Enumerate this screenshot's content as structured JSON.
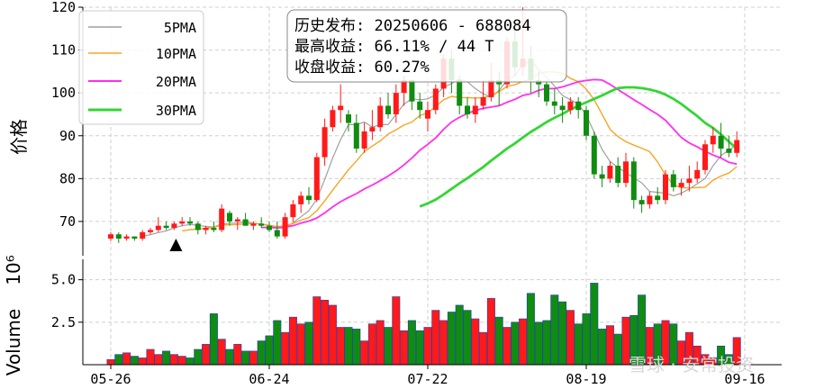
{
  "chart_data": [
    {
      "type": "candlestick",
      "ylabel": "价格",
      "ylim": [
        62,
        120
      ],
      "yticks": [
        70,
        80,
        90,
        100,
        110,
        120
      ],
      "xticks": [
        {
          "i": 0,
          "label": "05-26"
        },
        {
          "i": 20,
          "label": "06-24"
        },
        {
          "i": 40,
          "label": "07-22"
        },
        {
          "i": 60,
          "label": "08-19"
        },
        {
          "i": 80,
          "label": "09-16"
        }
      ],
      "marker_index": 8,
      "legend": [
        "5PMA",
        "10PMA",
        "20PMA",
        "30PMA"
      ],
      "info_lines": [
        "历史发布: 20250606 - 688084",
        "最高收益: 66.11% / 44 T",
        "收盘收益: 60.27%"
      ],
      "candles": [
        [
          66,
          67.5,
          65.5,
          67
        ],
        [
          67,
          67.5,
          65,
          66
        ],
        [
          66,
          67,
          65.5,
          66.5
        ],
        [
          66.5,
          66.5,
          65.5,
          66
        ],
        [
          66,
          68,
          65.5,
          67.5
        ],
        [
          67.5,
          68.5,
          67,
          68
        ],
        [
          68,
          71,
          67.5,
          69
        ],
        [
          69,
          70,
          68,
          68.5
        ],
        [
          68.5,
          70,
          68,
          69.5
        ],
        [
          69.5,
          71,
          69,
          70
        ],
        [
          70,
          71,
          69,
          69.5
        ],
        [
          69.5,
          70,
          67,
          68
        ],
        [
          68,
          69,
          67,
          68.5
        ],
        [
          68.5,
          70,
          67.5,
          68
        ],
        [
          68,
          74,
          67.5,
          73
        ],
        [
          72,
          72.5,
          69,
          70
        ],
        [
          70,
          71,
          68,
          70.5
        ],
        [
          70.5,
          72,
          69,
          69
        ],
        [
          69,
          70,
          68,
          69.5
        ],
        [
          69.5,
          71,
          68.5,
          69
        ],
        [
          69,
          70,
          67.5,
          68
        ],
        [
          68,
          70,
          66,
          66.5
        ],
        [
          66.5,
          72,
          66,
          71
        ],
        [
          71,
          75,
          70,
          74
        ],
        [
          74,
          77,
          72,
          76
        ],
        [
          76,
          78,
          74,
          75
        ],
        [
          75,
          86,
          74.5,
          85
        ],
        [
          85,
          94,
          83,
          92
        ],
        [
          92,
          97,
          91,
          96
        ],
        [
          96,
          102,
          93,
          97
        ],
        [
          95,
          96,
          91,
          93
        ],
        [
          93,
          95,
          86,
          87
        ],
        [
          87,
          93,
          86,
          91
        ],
        [
          91,
          96,
          89,
          92
        ],
        [
          92,
          99,
          91,
          97
        ],
        [
          97,
          100,
          94,
          95
        ],
        [
          95,
          102,
          93,
          100
        ],
        [
          100,
          104,
          97,
          103
        ],
        [
          103,
          103,
          96,
          98
        ],
        [
          98,
          100,
          94,
          96
        ],
        [
          94,
          98,
          91,
          96
        ],
        [
          96,
          102,
          95,
          101
        ],
        [
          101,
          109,
          99,
          108
        ],
        [
          108,
          110,
          100,
          103
        ],
        [
          103,
          104,
          95,
          97
        ],
        [
          97,
          99,
          94,
          95
        ],
        [
          95,
          99,
          93,
          97
        ],
        [
          97,
          103,
          96,
          99
        ],
        [
          99,
          107,
          98,
          103
        ],
        [
          103,
          105,
          97,
          102
        ],
        [
          102,
          113,
          101,
          112
        ],
        [
          112,
          117,
          104,
          106
        ],
        [
          106,
          120,
          104,
          108
        ],
        [
          108,
          111,
          100,
          103
        ],
        [
          103,
          105,
          99,
          102
        ],
        [
          102,
          103,
          97,
          98
        ],
        [
          98,
          101,
          95,
          97
        ],
        [
          97,
          99,
          93,
          96
        ],
        [
          96,
          99,
          95,
          98
        ],
        [
          98,
          99,
          94,
          96
        ],
        [
          96,
          97,
          89,
          90
        ],
        [
          90,
          91,
          80,
          81
        ],
        [
          81,
          83,
          78,
          80
        ],
        [
          80,
          84,
          79,
          83
        ],
        [
          83,
          85,
          78,
          79
        ],
        [
          79,
          86,
          78,
          84
        ],
        [
          84,
          85,
          73,
          75
        ],
        [
          75,
          76,
          72,
          74
        ],
        [
          74,
          77,
          73,
          76
        ],
        [
          76,
          78,
          74,
          75
        ],
        [
          75,
          82,
          74,
          81
        ],
        [
          81,
          82,
          77,
          78
        ],
        [
          78,
          80,
          76,
          79
        ],
        [
          79,
          83,
          77,
          80
        ],
        [
          80,
          84,
          79,
          82
        ],
        [
          82,
          89,
          81,
          88
        ],
        [
          88,
          92,
          86,
          90
        ],
        [
          90,
          93,
          85,
          87
        ],
        [
          87,
          90,
          85,
          86
        ],
        [
          86,
          91,
          85,
          89
        ]
      ],
      "ma5": [
        null,
        null,
        null,
        null,
        66.6,
        66.9,
        67.4,
        67.8,
        68.5,
        69.0,
        69.3,
        69.1,
        68.8,
        68.7,
        69.4,
        69.6,
        69.6,
        69.9,
        69.6,
        69.4,
        69.0,
        68.5,
        68.5,
        69.7,
        71.1,
        72.5,
        75.2,
        79.8,
        84.8,
        89.1,
        92.6,
        92.6,
        93.2,
        92.0,
        92.6,
        92.6,
        95.0,
        97.4,
        98.6,
        98.4,
        98.6,
        99.6,
        101.3,
        102.2,
        103.2,
        102.6,
        101.0,
        99.8,
        99.0,
        100.6,
        103.0,
        104.0,
        106.6,
        107.6,
        105.4,
        103.6,
        101.6,
        99.4,
        98.4,
        97.4,
        94.8,
        90.8,
        86.8,
        84.0,
        82.6,
        81.4,
        80.2,
        79.0,
        77.0,
        76.8,
        76.6,
        76.0,
        76.6,
        77.6,
        78.8,
        80.0,
        83.0,
        85.4,
        86.6,
        88.0
      ],
      "ma10": [
        null,
        null,
        null,
        null,
        null,
        null,
        null,
        null,
        null,
        67.8,
        68.1,
        68.2,
        68.4,
        68.6,
        69.2,
        69.2,
        69.3,
        69.4,
        69.5,
        69.4,
        69.1,
        68.8,
        69.0,
        69.5,
        70.3,
        70.9,
        72.5,
        74.8,
        77.3,
        79.7,
        82.1,
        84.1,
        86.3,
        87.6,
        88.8,
        90.4,
        91.4,
        92.5,
        93.2,
        94.7,
        95.4,
        96.8,
        98.4,
        99.2,
        98.9,
        98.9,
        98.8,
        98.9,
        99.3,
        100.3,
        101.5,
        101.9,
        102.7,
        103.1,
        104.6,
        104.9,
        104.9,
        104.6,
        103.4,
        102.6,
        100.9,
        98.4,
        95.0,
        91.5,
        89.8,
        88.6,
        87.8,
        87.1,
        86.3,
        83.9,
        80.8,
        78.5,
        77.9,
        77.8,
        77.9,
        78.0,
        79.6,
        80.6,
        81.3,
        82.8
      ],
      "ma20": [
        null,
        null,
        null,
        null,
        null,
        null,
        null,
        null,
        null,
        null,
        null,
        null,
        null,
        null,
        null,
        null,
        null,
        null,
        null,
        68.6,
        68.6,
        68.5,
        68.7,
        69.0,
        69.6,
        70.1,
        70.8,
        72.0,
        73.4,
        74.6,
        75.6,
        76.5,
        77.6,
        78.5,
        79.5,
        80.6,
        81.8,
        83.2,
        84.8,
        86.6,
        88.0,
        89.5,
        91.5,
        93.2,
        94.3,
        95.2,
        95.9,
        96.4,
        96.7,
        97.0,
        97.8,
        98.5,
        99.4,
        99.8,
        100.6,
        101.0,
        101.0,
        101.4,
        102.0,
        102.6,
        102.9,
        103.1,
        103.0,
        102.0,
        100.8,
        99.6,
        98.4,
        97.3,
        96.1,
        95.0,
        93.6,
        91.6,
        89.6,
        88.3,
        87.4,
        86.4,
        85.5,
        84.8,
        83.8,
        83.4
      ],
      "ma30": [
        null,
        null,
        null,
        null,
        null,
        null,
        null,
        null,
        null,
        null,
        null,
        null,
        null,
        null,
        null,
        null,
        null,
        null,
        null,
        null,
        null,
        null,
        null,
        null,
        null,
        null,
        null,
        null,
        null,
        null,
        null,
        null,
        null,
        null,
        null,
        null,
        null,
        null,
        null,
        73.5,
        74.2,
        75.1,
        76.3,
        77.6,
        78.9,
        80.1,
        81.4,
        82.7,
        84.2,
        85.6,
        87.0,
        88.2,
        89.6,
        90.9,
        92.0,
        93.2,
        94.2,
        95.1,
        96.1,
        97.0,
        97.8,
        98.6,
        99.4,
        100.3,
        101.1,
        101.3,
        101.3,
        101.1,
        100.8,
        100.3,
        99.6,
        98.6,
        97.4,
        96.0,
        94.6,
        93.0,
        91.8,
        90.3,
        88.6,
        87.0
      ]
    },
    {
      "type": "bar",
      "ylabel": "Volume",
      "scale_label": "10⁶",
      "ylim": [
        0,
        6.2
      ],
      "yticks": [
        2.5,
        5.0
      ],
      "volume": [
        0.3,
        0.6,
        0.7,
        0.5,
        0.4,
        0.9,
        0.6,
        0.8,
        0.6,
        0.5,
        0.4,
        0.9,
        1.2,
        3.0,
        1.5,
        0.9,
        1.2,
        0.8,
        0.8,
        1.4,
        1.7,
        2.6,
        1.9,
        2.8,
        2.4,
        2.5,
        4.0,
        3.8,
        3.5,
        2.2,
        2.2,
        2.1,
        1.4,
        2.4,
        2.6,
        2.2,
        4.0,
        2.0,
        2.6,
        2.0,
        2.2,
        3.2,
        2.6,
        3.1,
        3.5,
        3.2,
        2.7,
        1.9,
        3.9,
        2.8,
        2.2,
        2.5,
        2.7,
        4.2,
        2.5,
        2.6,
        4.1,
        3.7,
        3.2,
        2.4,
        3.0,
        4.8,
        2.1,
        2.3,
        1.8,
        2.8,
        2.9,
        4.1,
        2.2,
        2.4,
        2.6,
        2.4,
        1.4,
        1.9,
        1.1,
        0.6,
        0.4,
        1.1,
        0.6,
        1.6
      ]
    }
  ],
  "watermark": "雪球 · 安常投资"
}
